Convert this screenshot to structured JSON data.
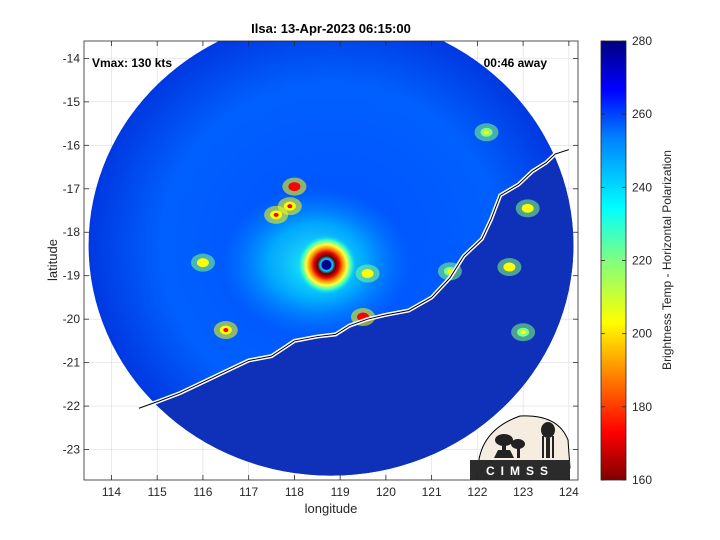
{
  "chart_data": {
    "type": "heatmap",
    "title": "Ilsa: 13-Apr-2023 06:15:00",
    "xlabel": "longitude",
    "ylabel": "latitude",
    "xlim": [
      113.4,
      124.2
    ],
    "ylim": [
      -23.7,
      -13.6
    ],
    "x_ticks": [
      114,
      115,
      116,
      117,
      118,
      119,
      120,
      121,
      122,
      123,
      124
    ],
    "x_tick_labels": [
      "114",
      "115",
      "116",
      "117",
      "118",
      "119",
      "120",
      "121",
      "122",
      "123",
      "124"
    ],
    "y_ticks": [
      -14,
      -15,
      -16,
      -17,
      -18,
      -19,
      -20,
      -21,
      -22,
      -23
    ],
    "y_tick_labels": [
      "-14",
      "-15",
      "-16",
      "-17",
      "-18",
      "-19",
      "-20",
      "-21",
      "-22",
      "-23"
    ],
    "grid": true,
    "annotations": {
      "vmax": "Vmax: 130 kts",
      "time_away": "00:46 away"
    },
    "storm_center": {
      "lon": 118.7,
      "lat": -18.8
    },
    "scan_center": {
      "lon": 118.8,
      "lat": -18.3
    },
    "scan_radius_deg": 5.3,
    "colorbar": {
      "label": "Brightness Temp - Horizontal Polarization",
      "min": 160,
      "max": 280,
      "ticks": [
        160,
        180,
        200,
        220,
        240,
        260,
        280
      ],
      "tick_labels": [
        "160",
        "180",
        "200",
        "220",
        "240",
        "260",
        "280"
      ]
    },
    "coastline": [
      [
        114.6,
        -22.05
      ],
      [
        115.0,
        -21.9
      ],
      [
        115.5,
        -21.7
      ],
      [
        116.0,
        -21.45
      ],
      [
        116.5,
        -21.2
      ],
      [
        117.0,
        -20.95
      ],
      [
        117.5,
        -20.85
      ],
      [
        118.0,
        -20.5
      ],
      [
        118.5,
        -20.4
      ],
      [
        118.9,
        -20.35
      ],
      [
        119.2,
        -20.15
      ],
      [
        119.6,
        -20.0
      ],
      [
        120.0,
        -19.9
      ],
      [
        120.5,
        -19.8
      ],
      [
        121.0,
        -19.5
      ],
      [
        121.4,
        -19.05
      ],
      [
        121.7,
        -18.55
      ],
      [
        122.1,
        -18.15
      ],
      [
        122.3,
        -17.7
      ],
      [
        122.5,
        -17.15
      ],
      [
        122.9,
        -16.9
      ],
      [
        123.2,
        -16.6
      ],
      [
        123.5,
        -16.4
      ],
      [
        123.7,
        -16.2
      ],
      [
        124.0,
        -16.1
      ]
    ],
    "features": [
      {
        "name": "eyewall",
        "lon": 118.7,
        "lat": -18.75,
        "value": 175
      },
      {
        "name": "rainband-north-1",
        "lon": 118.0,
        "lat": -16.95,
        "value": 185
      },
      {
        "name": "rainband-north-2",
        "lon": 117.9,
        "lat": -17.4,
        "value": 190
      },
      {
        "name": "rainband-north-3",
        "lon": 117.6,
        "lat": -17.6,
        "value": 195
      },
      {
        "name": "outer-cell-west",
        "lon": 116.0,
        "lat": -18.7,
        "value": 205
      },
      {
        "name": "outer-cell-southwest",
        "lon": 116.5,
        "lat": -20.25,
        "value": 195
      },
      {
        "name": "rainband-south-east",
        "lon": 119.5,
        "lat": -19.95,
        "value": 180
      },
      {
        "name": "rainband-east",
        "lon": 119.6,
        "lat": -18.95,
        "value": 205
      },
      {
        "name": "coastal-cell-1",
        "lon": 121.4,
        "lat": -18.9,
        "value": 220
      },
      {
        "name": "coastal-cell-2",
        "lon": 122.7,
        "lat": -18.8,
        "value": 215
      },
      {
        "name": "coastal-cell-3",
        "lon": 123.1,
        "lat": -17.45,
        "value": 215
      },
      {
        "name": "coastal-cell-4",
        "lon": 122.2,
        "lat": -15.7,
        "value": 220
      },
      {
        "name": "coastal-cell-5",
        "lon": 123.0,
        "lat": -20.3,
        "value": 220
      }
    ],
    "colormap": "jet-reversed"
  },
  "logo": {
    "text": "CIMSS"
  }
}
